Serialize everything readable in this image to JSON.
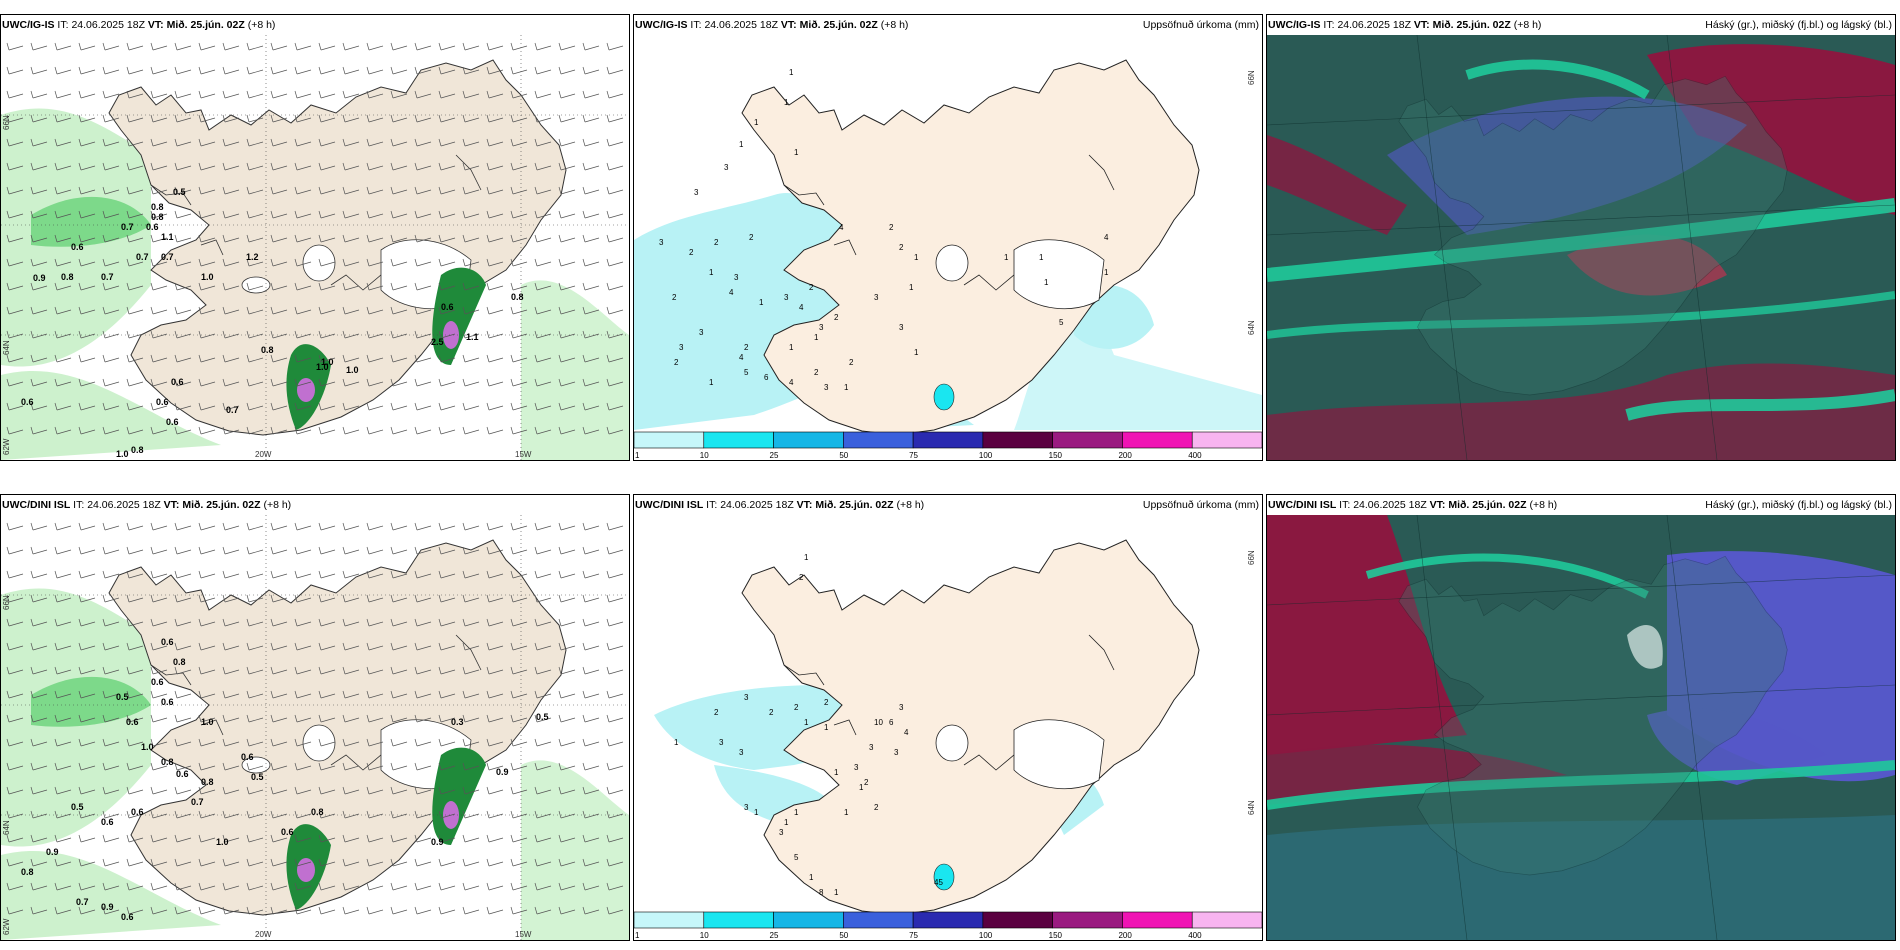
{
  "colors": {
    "land": "#f0e6d8",
    "sea": "#ffffff",
    "precip_light": "#c8f0c8",
    "precip_mid": "#7dd98a",
    "precip_dark": "#1f8a3a",
    "precip_vdark": "#0b5a22",
    "accum_base": "#b8f2f5",
    "cloud_dark": "#2a5a55",
    "cloud_teal": "#1fc99a",
    "cloud_magenta": "#8a1840",
    "cloud_purple": "#5558c8"
  },
  "panels": [
    {
      "id": "ig-wind",
      "model": "UWC/IG-IS",
      "it_label": "IT:",
      "it_time": "24.06.2025 18Z",
      "vt_label": "VT:",
      "vt_time": "Mið. 25.jún. 02Z",
      "lead": "(+8 h)",
      "right_label": "",
      "grid_labels": {
        "lat_top": "66N",
        "lat_mid": "64N",
        "lat_bottom": "62W",
        "lon_left": "20W",
        "lon_right": "15W"
      },
      "values": [
        "0.5",
        "0.8",
        "0.8",
        "0.6",
        "0.7",
        "1.1",
        "0.7",
        "0.7",
        "0.6",
        "0.8",
        "0.7",
        "1.0",
        "1.2",
        "0.8",
        "1.0",
        "1.0",
        "1.0",
        "0.6",
        "0.6",
        "0.6",
        "0.6",
        "0.7",
        "1.0",
        "0.8",
        "0.9",
        "0.8",
        "2.5",
        "0.6",
        "1.1"
      ]
    },
    {
      "id": "ig-accum",
      "model": "UWC/IG-IS",
      "it_label": "IT:",
      "it_time": "24.06.2025 18Z",
      "vt_label": "VT:",
      "vt_time": "Mið. 25.jún. 02Z",
      "lead": "(+8 h)",
      "right_label": "Uppsöfnuð úrkoma (mm)",
      "grid_labels": {
        "lat_top": "66N",
        "lat_mid": "64N"
      },
      "values": [
        "1",
        "1",
        "1",
        "1",
        "1",
        "3",
        "3",
        "3",
        "2",
        "2",
        "2",
        "3",
        "1",
        "2",
        "4",
        "1",
        "3",
        "4",
        "3",
        "2",
        "3",
        "1",
        "1",
        "2",
        "2",
        "4",
        "2",
        "1",
        "2",
        "3",
        "3",
        "2",
        "4",
        "5",
        "6",
        "1",
        "4",
        "1",
        "2",
        "3",
        "1",
        "2",
        "3",
        "1",
        "1",
        "1",
        "1",
        "5",
        "4",
        "1"
      ],
      "colorbar": {
        "ticks": [
          "1",
          "10",
          "25",
          "50",
          "75",
          "100",
          "150",
          "200",
          "400"
        ],
        "colors": [
          "#c6f7fa",
          "#1ae6f0",
          "#16b6e6",
          "#3a60dc",
          "#2a2ab0",
          "#5a0040",
          "#9a1a80",
          "#f014b4",
          "#f8b4f0"
        ]
      }
    },
    {
      "id": "ig-cloud",
      "model": "UWC/IG-IS",
      "it_label": "IT:",
      "it_time": "24.06.2025 18Z",
      "vt_label": "VT:",
      "vt_time": "Mið. 25.jún. 02Z",
      "lead": "(+8 h)",
      "right_label": "Háský (gr.), miðský (fj.bl.) og lágský (bl.)"
    },
    {
      "id": "dini-wind",
      "model": "UWC/DINI ISL",
      "it_label": "IT:",
      "it_time": "24.06.2025 18Z",
      "vt_label": "VT:",
      "vt_time": "Mið. 25.jún. 02Z",
      "lead": "(+8 h)",
      "right_label": "",
      "grid_labels": {
        "lat_top": "66N",
        "lat_mid": "64N",
        "lat_bottom": "62W",
        "lon_left": "20W",
        "lon_right": "15W"
      },
      "values": [
        "0.6",
        "0.8",
        "0.6",
        "0.5",
        "0.6",
        "0.6",
        "1.0",
        "1.0",
        "0.8",
        "0.6",
        "0.6",
        "0.8",
        "0.7",
        "0.5",
        "0.6",
        "0.6",
        "1.0",
        "0.9",
        "0.8",
        "0.6",
        "0.8",
        "0.5",
        "0.6",
        "0.9",
        "0.7",
        "0.9",
        "0.5",
        "0.3",
        "0.9"
      ]
    },
    {
      "id": "dini-accum",
      "model": "UWC/DINI ISL",
      "it_label": "IT:",
      "it_time": "24.06.2025 18Z",
      "vt_label": "VT:",
      "vt_time": "Mið. 25.jún. 02Z",
      "lead": "(+8 h)",
      "right_label": "Uppsöfnuð úrkoma (mm)",
      "grid_labels": {
        "lat_top": "66N",
        "lat_mid": "64N"
      },
      "values": [
        "1",
        "2",
        "2",
        "2",
        "3",
        "2",
        "1",
        "3",
        "3",
        "2",
        "1",
        "1",
        "3",
        "6",
        "4",
        "3",
        "3",
        "1",
        "10",
        "3",
        "1",
        "2",
        "2",
        "1",
        "1",
        "1",
        "1",
        "3",
        "3",
        "5",
        "1",
        "8",
        "1",
        "45"
      ],
      "colorbar": {
        "ticks": [
          "1",
          "10",
          "25",
          "50",
          "75",
          "100",
          "150",
          "200",
          "400"
        ],
        "colors": [
          "#c6f7fa",
          "#1ae6f0",
          "#16b6e6",
          "#3a60dc",
          "#2a2ab0",
          "#5a0040",
          "#9a1a80",
          "#f014b4",
          "#f8b4f0"
        ]
      }
    },
    {
      "id": "dini-cloud",
      "model": "UWC/DINI ISL",
      "it_label": "IT:",
      "it_time": "24.06.2025 18Z",
      "vt_label": "VT:",
      "vt_time": "Mið. 25.jún. 02Z",
      "lead": "(+8 h)",
      "right_label": "Háský (gr.), miðský (fj.bl.) og lágský (bl.)"
    }
  ]
}
